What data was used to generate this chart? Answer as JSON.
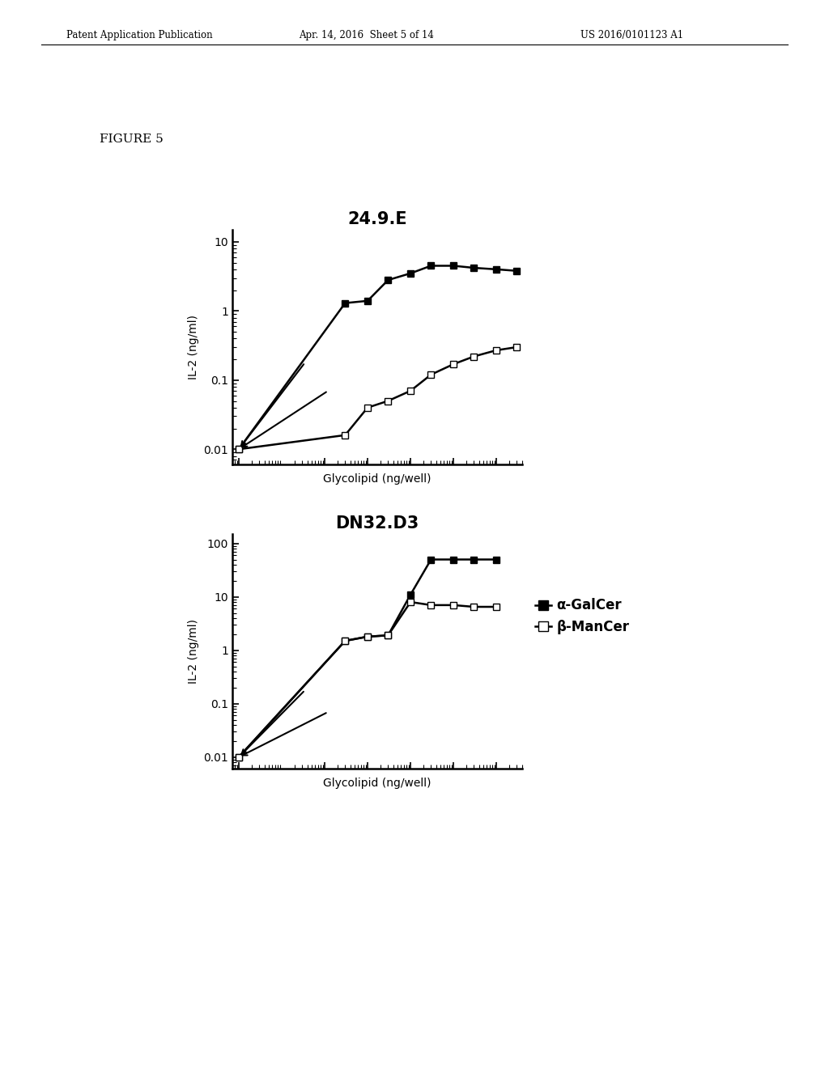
{
  "header_left": "Patent Application Publication",
  "header_mid": "Apr. 14, 2016  Sheet 5 of 14",
  "header_right": "US 2016/0101123 A1",
  "figure_label": "FIGURE 5",
  "plot1": {
    "title": "24.9.E",
    "xlabel": "Glycolipid (ng/well)",
    "ylabel": "IL-2 (ng/ml)",
    "ylim": [
      0.006,
      15
    ],
    "series1_x": [
      0.001,
      0.3,
      1,
      3,
      10,
      30,
      100,
      300,
      1000,
      3000
    ],
    "series1_y": [
      0.01,
      1.3,
      1.4,
      2.8,
      3.5,
      4.5,
      4.5,
      4.2,
      4.0,
      3.8
    ],
    "series2_x": [
      0.001,
      0.3,
      1,
      3,
      10,
      30,
      100,
      300,
      1000,
      3000
    ],
    "series2_y": [
      0.01,
      0.016,
      0.04,
      0.05,
      0.07,
      0.12,
      0.17,
      0.22,
      0.27,
      0.3
    ]
  },
  "plot2": {
    "title": "DN32.D3",
    "xlabel": "Glycolipid (ng/well)",
    "ylabel": "IL-2 (ng/ml)",
    "ylim": [
      0.006,
      150
    ],
    "series1_x": [
      0.001,
      0.3,
      1,
      3,
      10,
      30,
      100,
      300,
      1000
    ],
    "series1_y": [
      0.01,
      1.5,
      1.8,
      1.9,
      11,
      50,
      50,
      50,
      50
    ],
    "series2_x": [
      0.001,
      0.3,
      1,
      3,
      10,
      30,
      100,
      300,
      1000
    ],
    "series2_y": [
      0.01,
      1.5,
      1.8,
      1.9,
      8,
      7,
      7,
      6.5,
      6.5
    ]
  },
  "legend_alpha": "α-GalCer",
  "legend_beta": "β-ManCer",
  "background_color": "#ffffff"
}
